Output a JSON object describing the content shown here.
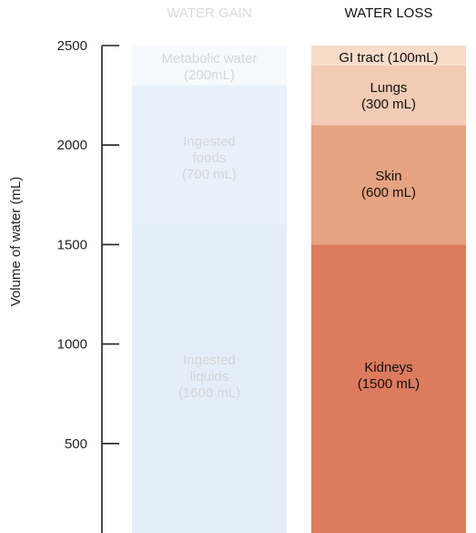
{
  "chart_data": {
    "type": "bar",
    "stacked": true,
    "ylabel": "Volume of water (mL)",
    "ylim": [
      0,
      2500
    ],
    "yticks": [
      500,
      1000,
      1500,
      2000,
      2500
    ],
    "columns": [
      {
        "name": "WATER GAIN",
        "segments": [
          {
            "label": "Ingested\nliquids\n(1600 mL)",
            "value": 1600,
            "color": "#e3eef9"
          },
          {
            "label": "Ingested\nfoods\n(700 mL)",
            "value": 700,
            "color": "#e8f0fa"
          },
          {
            "label": "Metabolic water\n(200mL)",
            "value": 200,
            "color": "#f6f9fd"
          }
        ]
      },
      {
        "name": "WATER LOSS",
        "segments": [
          {
            "label": "Kidneys\n(1500 mL)",
            "value": 1500,
            "color": "#dd7b5e"
          },
          {
            "label": "Skin\n(600 mL)",
            "value": 600,
            "color": "#e6a382"
          },
          {
            "label": "Lungs\n(300 mL)",
            "value": 300,
            "color": "#f1cbb3"
          },
          {
            "label": "GI tract (100mL)",
            "value": 100,
            "color": "#f6dcc9"
          }
        ]
      }
    ]
  },
  "colors": {
    "gain_text": "#d6d6d6",
    "loss_text": "#111111",
    "axis": "#222222"
  }
}
